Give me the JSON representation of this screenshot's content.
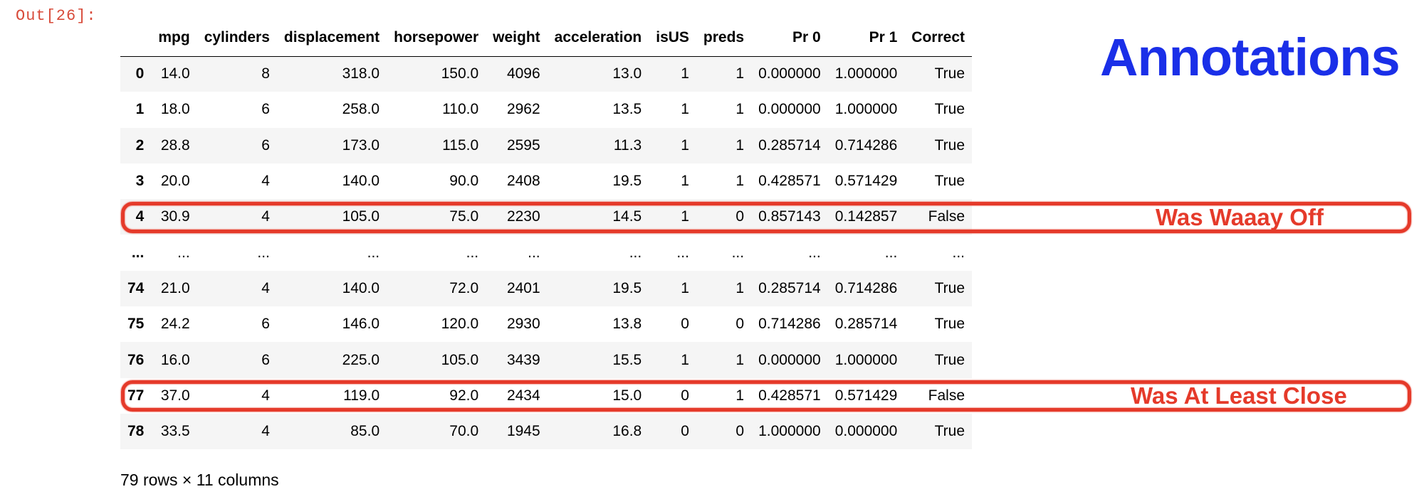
{
  "prompt": "Out[26]:",
  "table": {
    "columns": [
      "",
      "mpg",
      "cylinders",
      "displacement",
      "horsepower",
      "weight",
      "acceleration",
      "isUS",
      "preds",
      "Pr 0",
      "Pr 1",
      "Correct"
    ],
    "rows": [
      [
        "0",
        "14.0",
        "8",
        "318.0",
        "150.0",
        "4096",
        "13.0",
        "1",
        "1",
        "0.000000",
        "1.000000",
        "True"
      ],
      [
        "1",
        "18.0",
        "6",
        "258.0",
        "110.0",
        "2962",
        "13.5",
        "1",
        "1",
        "0.000000",
        "1.000000",
        "True"
      ],
      [
        "2",
        "28.8",
        "6",
        "173.0",
        "115.0",
        "2595",
        "11.3",
        "1",
        "1",
        "0.285714",
        "0.714286",
        "True"
      ],
      [
        "3",
        "20.0",
        "4",
        "140.0",
        "90.0",
        "2408",
        "19.5",
        "1",
        "1",
        "0.428571",
        "0.571429",
        "True"
      ],
      [
        "4",
        "30.9",
        "4",
        "105.0",
        "75.0",
        "2230",
        "14.5",
        "1",
        "0",
        "0.857143",
        "0.142857",
        "False"
      ],
      [
        "...",
        "...",
        "...",
        "...",
        "...",
        "...",
        "...",
        "...",
        "...",
        "...",
        "...",
        "..."
      ],
      [
        "74",
        "21.0",
        "4",
        "140.0",
        "72.0",
        "2401",
        "19.5",
        "1",
        "1",
        "0.285714",
        "0.714286",
        "True"
      ],
      [
        "75",
        "24.2",
        "6",
        "146.0",
        "120.0",
        "2930",
        "13.8",
        "0",
        "0",
        "0.714286",
        "0.285714",
        "True"
      ],
      [
        "76",
        "16.0",
        "6",
        "225.0",
        "105.0",
        "3439",
        "15.5",
        "1",
        "1",
        "0.000000",
        "1.000000",
        "True"
      ],
      [
        "77",
        "37.0",
        "4",
        "119.0",
        "92.0",
        "2434",
        "15.0",
        "0",
        "1",
        "0.428571",
        "0.571429",
        "False"
      ],
      [
        "78",
        "33.5",
        "4",
        "85.0",
        "70.0",
        "1945",
        "16.8",
        "0",
        "0",
        "1.000000",
        "0.000000",
        "True"
      ]
    ]
  },
  "footer": "79 rows × 11 columns",
  "annotations": {
    "title": "Annotations",
    "labels": [
      "Was Waaay Off",
      "Was At Least Close"
    ]
  },
  "colors": {
    "prompt": "#d84b3a",
    "annotation_title": "#1a2fe8",
    "highlight": "#e53a2a"
  }
}
